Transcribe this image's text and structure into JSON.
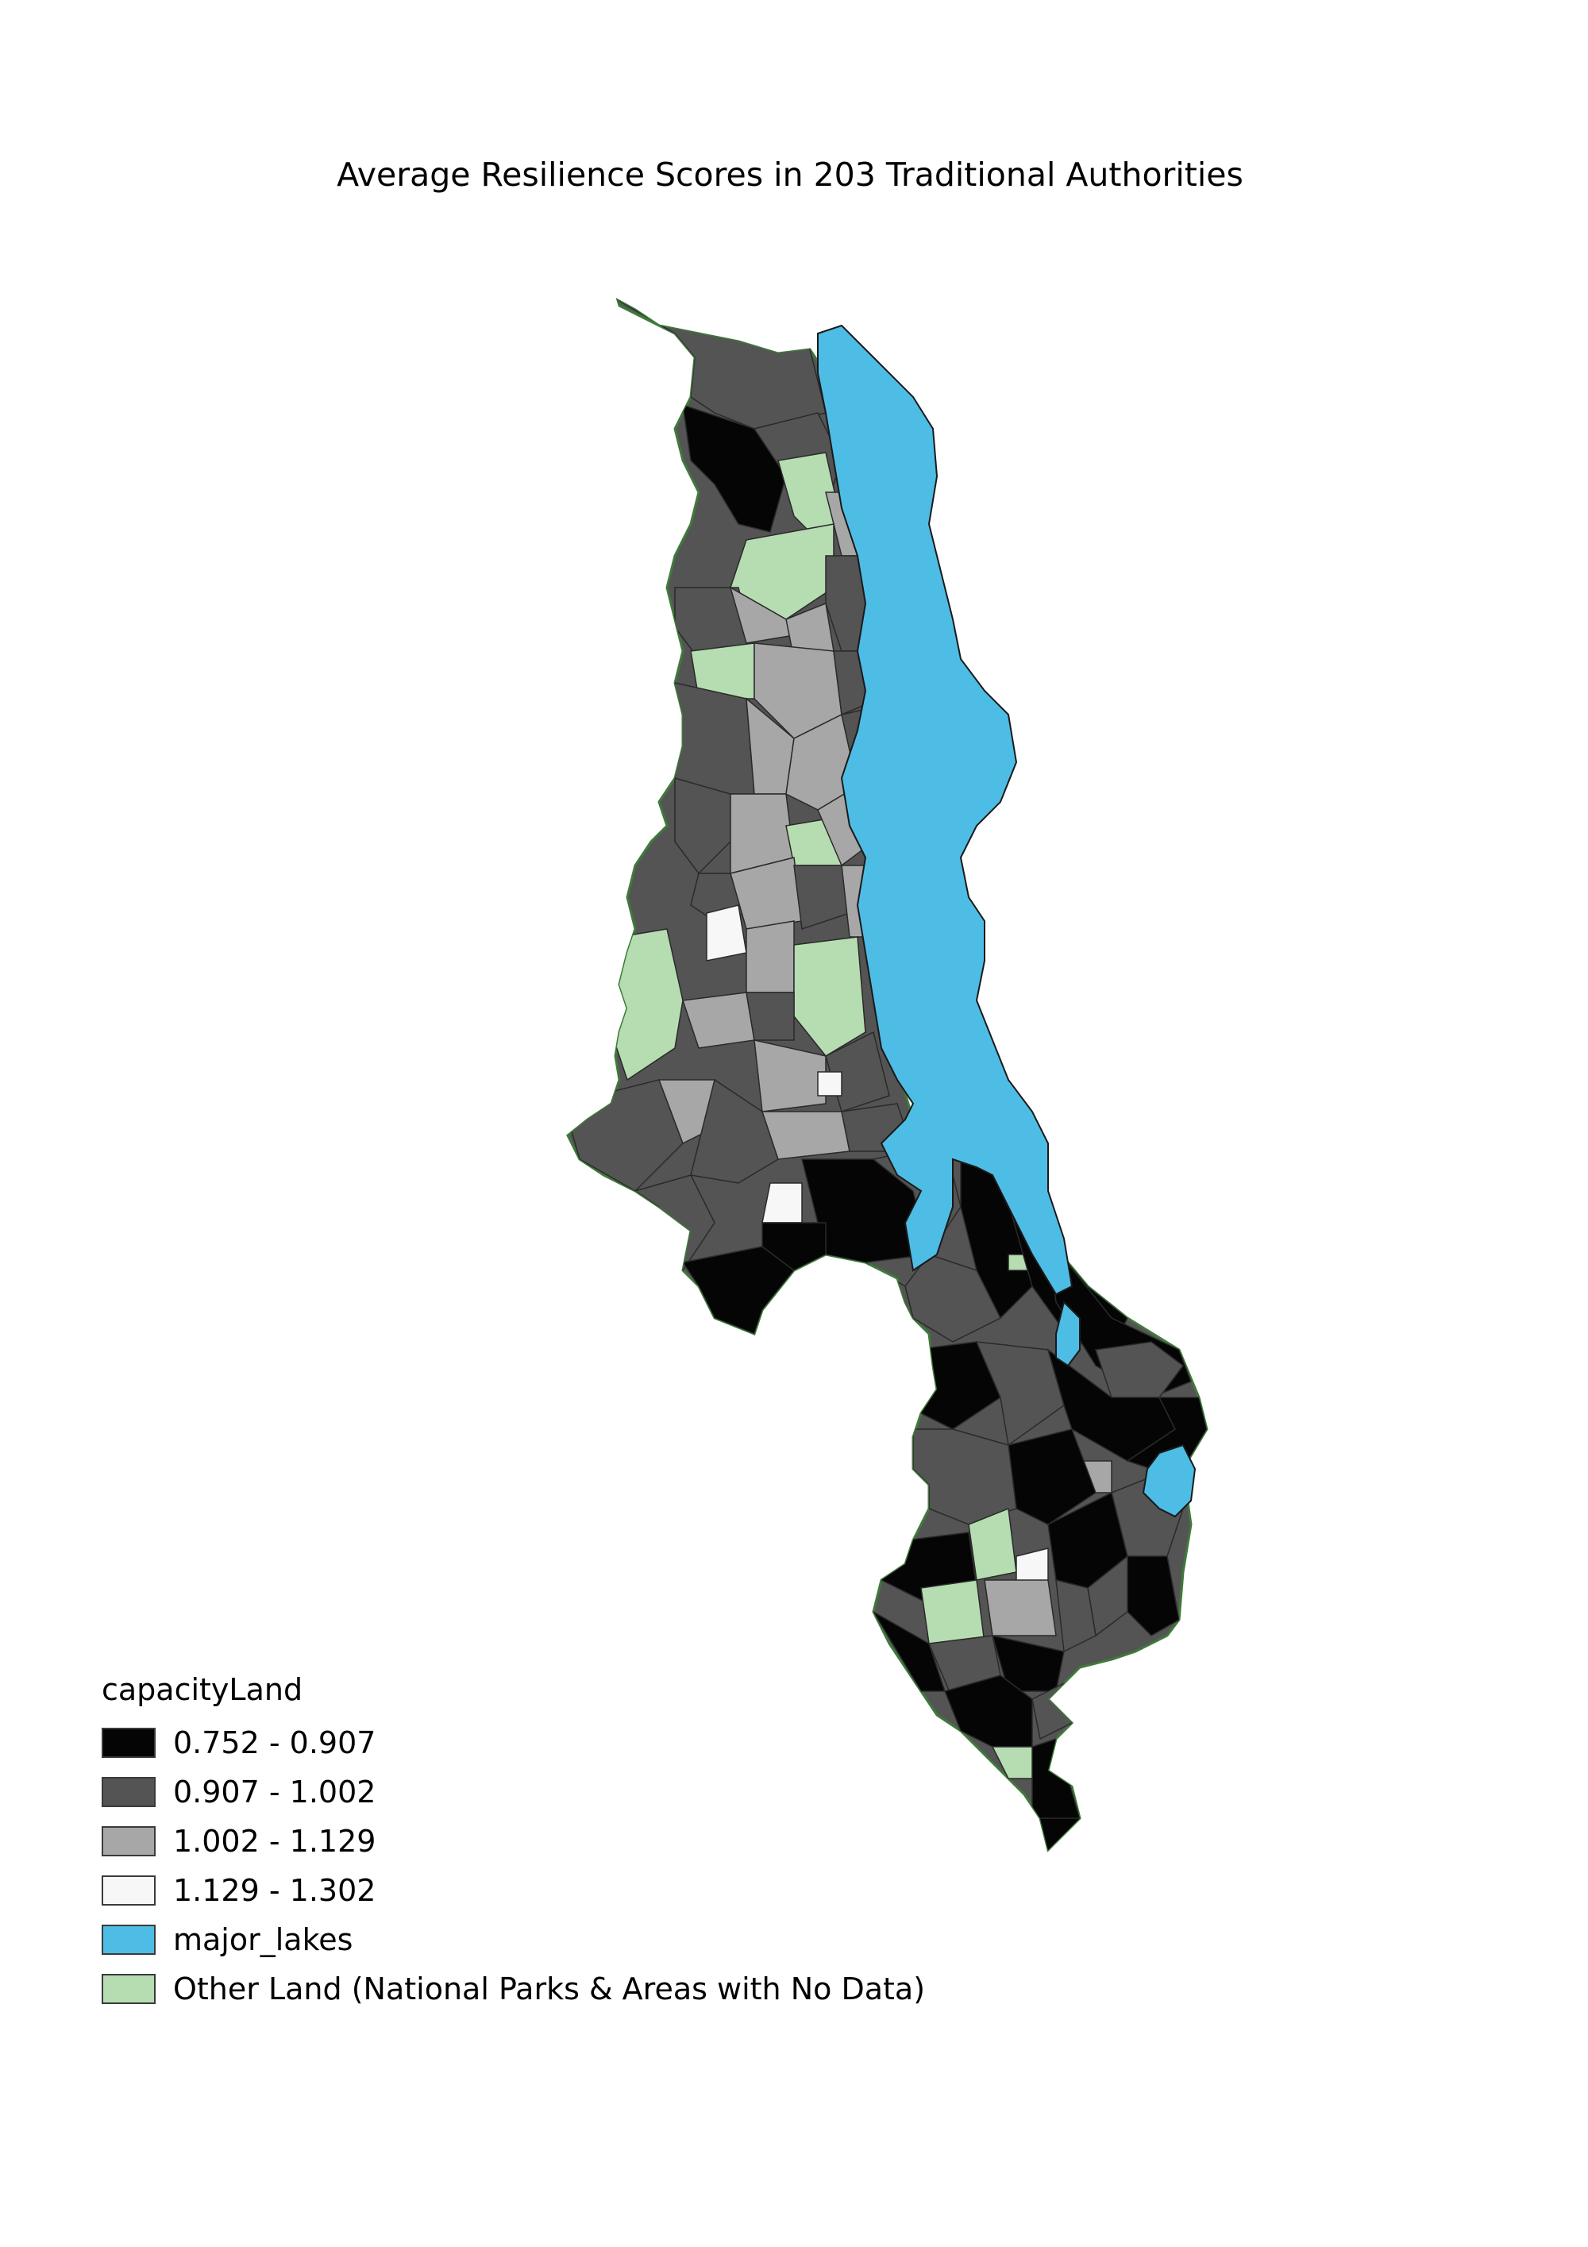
{
  "title": "Average Resilience Scores in 203 Traditional Authorities",
  "legend": {
    "title": "capacityLand",
    "items": [
      {
        "label": "0.752 - 0.907",
        "color": "#050505"
      },
      {
        "label": "0.907 - 1.002",
        "color": "#545454"
      },
      {
        "label": "1.002 - 1.129",
        "color": "#a7a7a7"
      },
      {
        "label": "1.129 - 1.302",
        "color": "#f7f7f7"
      },
      {
        "label": "major_lakes",
        "color": "#4ebde5"
      },
      {
        "label": "Other Land (National Parks & Areas with No Data)",
        "color": "#b6ddb2"
      }
    ]
  },
  "colors": {
    "class1": "#050505",
    "class2": "#545454",
    "class3": "#a7a7a7",
    "class4": "#f7f7f7",
    "lake": "#4ebde5",
    "other_land": "#b6ddb2",
    "border": "#2a2a2a"
  }
}
